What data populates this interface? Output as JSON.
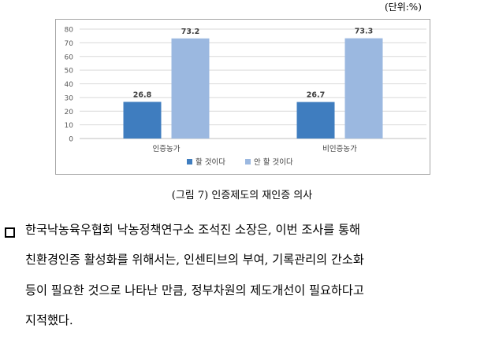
{
  "unit_label": "(단위:%)",
  "chart_data": {
    "type": "bar",
    "categories": [
      "인증농가",
      "비인증농가"
    ],
    "series": [
      {
        "name": "할 것이다",
        "values": [
          26.8,
          26.7
        ],
        "color": "#3f7dbf"
      },
      {
        "name": "안 할 것이다",
        "values": [
          73.2,
          73.3
        ],
        "color": "#9bb8e0"
      }
    ],
    "ylim": [
      0,
      80
    ],
    "yticks": [
      "80",
      "70",
      "60",
      "50",
      "40",
      "30",
      "20",
      "10",
      "0"
    ],
    "legend_position": "bottom-center"
  },
  "figure_caption": "(그림 7) 인증제도의 재인증 의사",
  "paragraph": {
    "bullet_icon": "square-bullet-icon",
    "lines": [
      "한국낙농육우협회 낙농정책연구소 조석진 소장은, 이번 조사를 통해",
      "친환경인증 활성화를 위해서는, 인센티브의 부여, 기록관리의 간소화",
      "등이 필요한 것으로 나타난 만큼, 정부차원의 제도개선이 필요하다고",
      "지적했다."
    ]
  }
}
